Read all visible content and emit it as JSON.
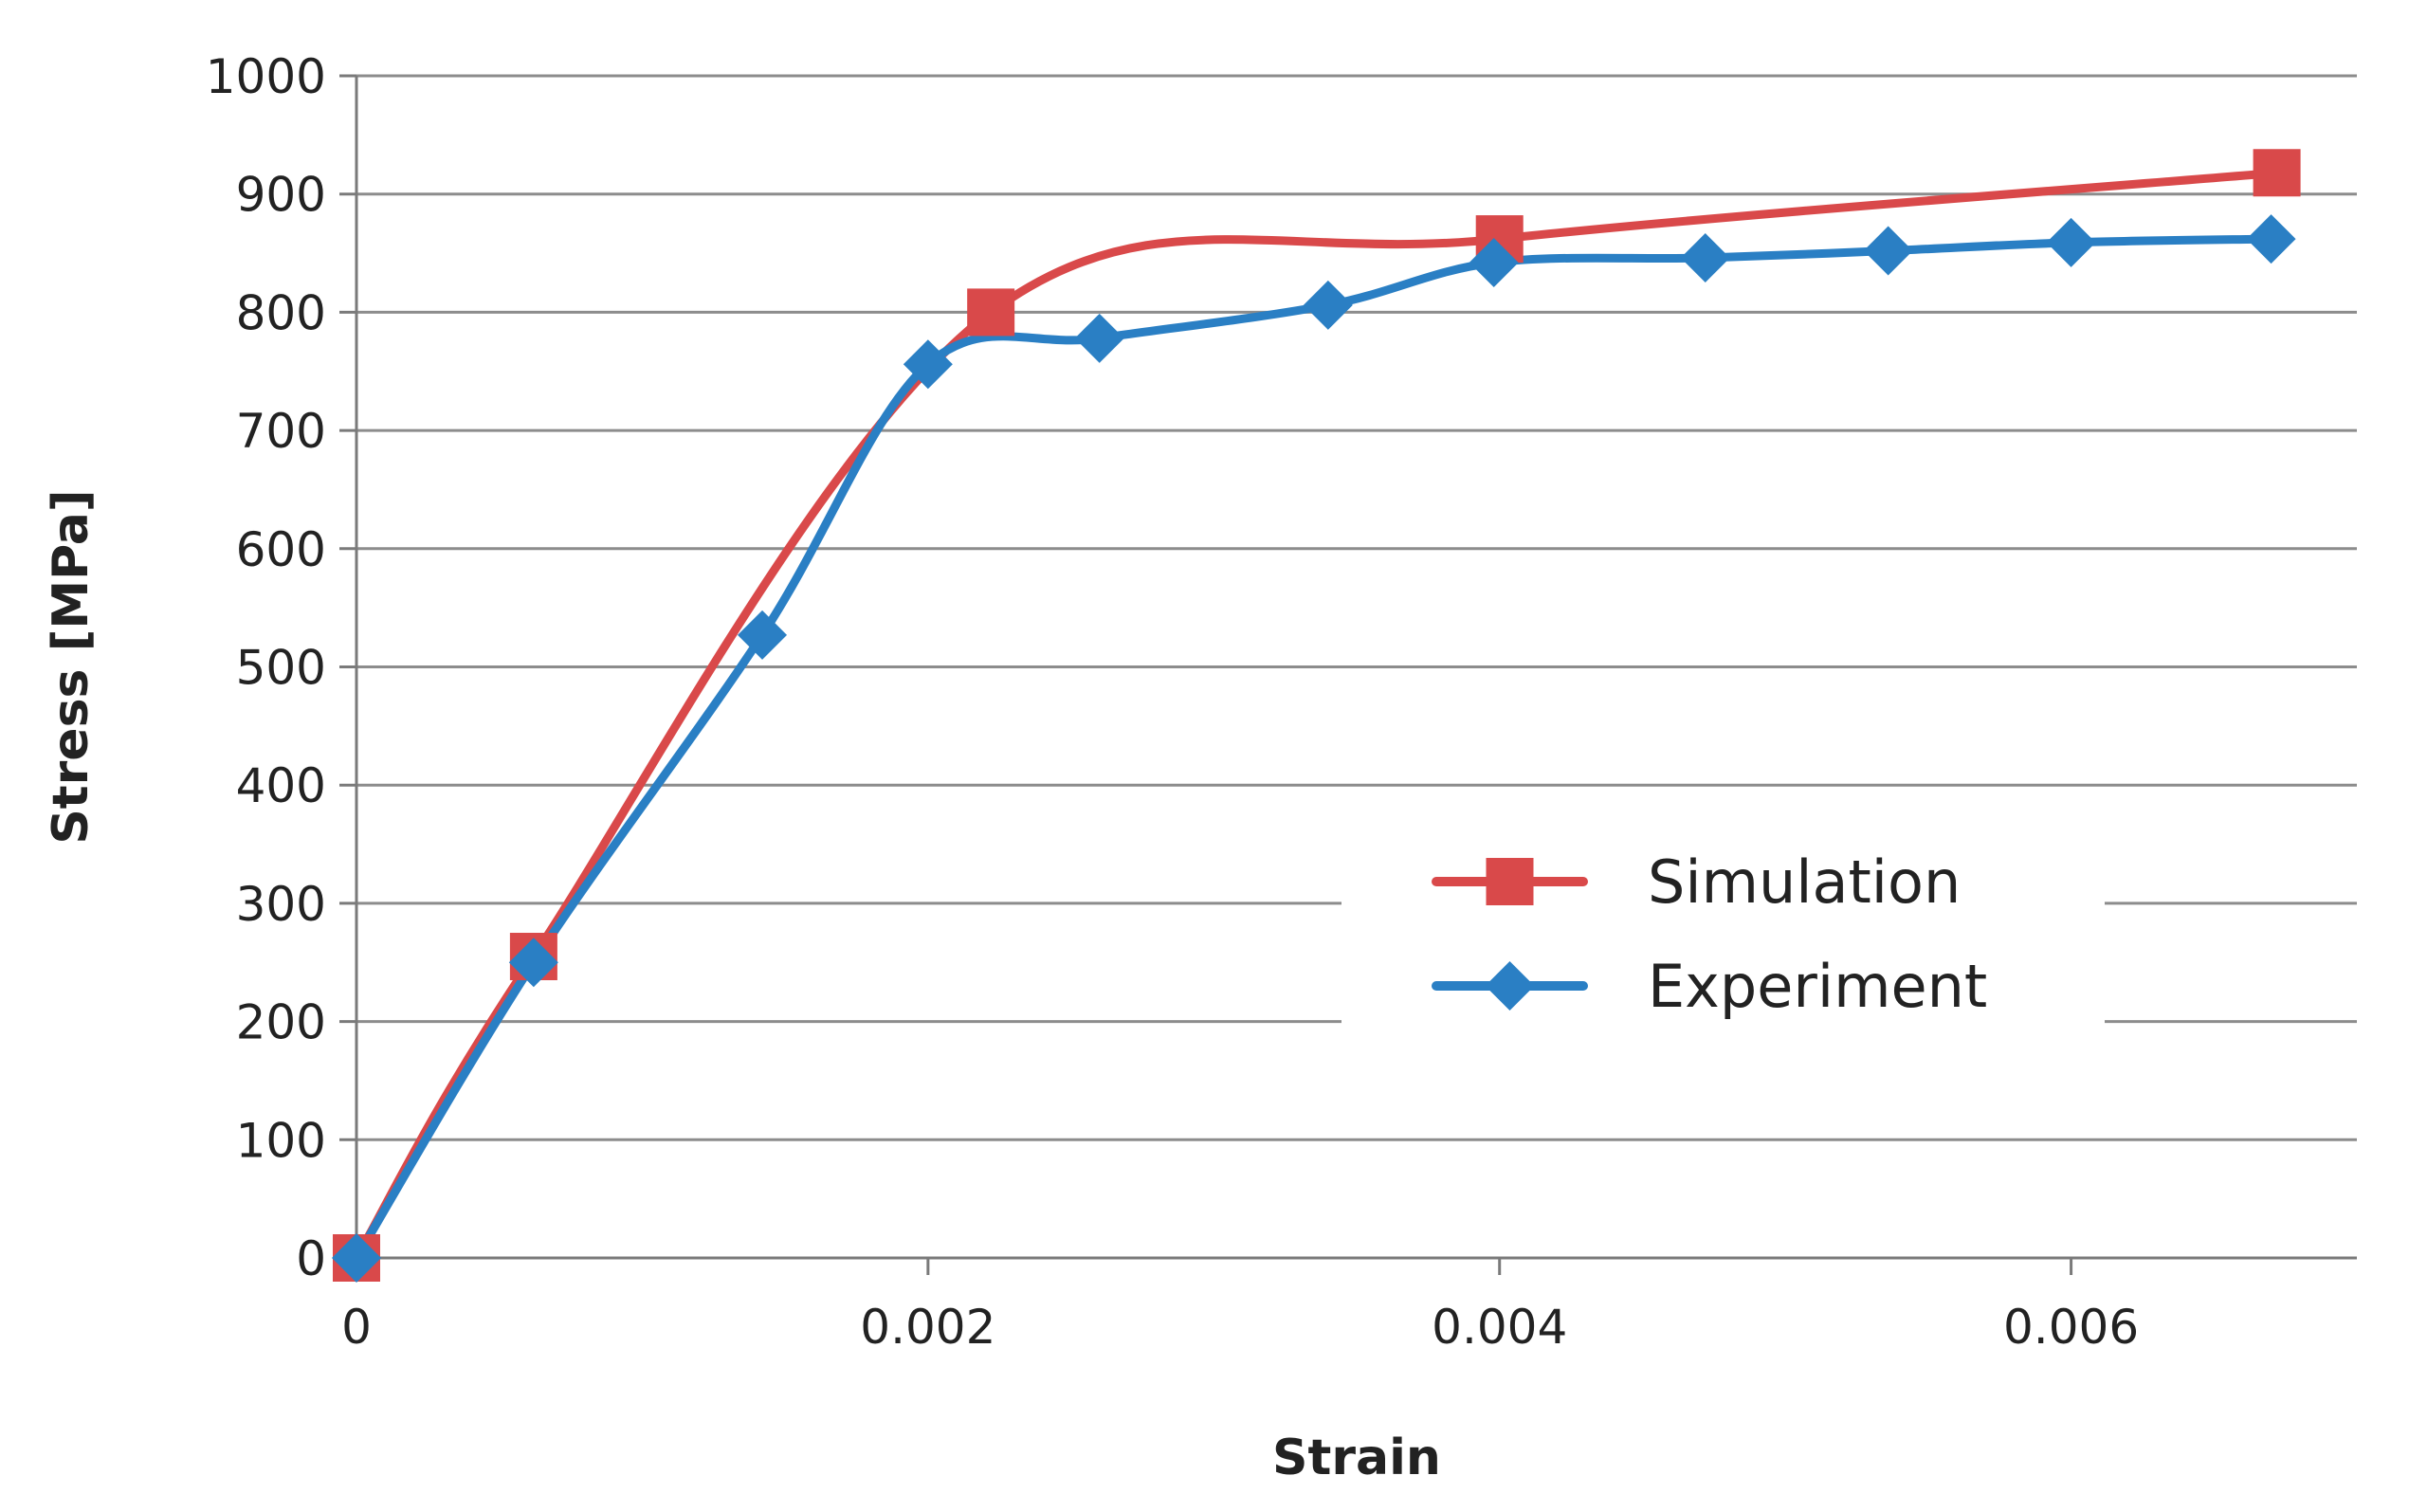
{
  "chart_data": {
    "type": "line",
    "title": "",
    "xlabel": "Strain",
    "ylabel": "Stress [MPa]",
    "xlim": [
      0,
      0.007
    ],
    "ylim": [
      0,
      1000
    ],
    "x_ticks": [
      0,
      0.002,
      0.004,
      0.006
    ],
    "x_tick_labels": [
      "0",
      "0.002",
      "0.004",
      "0.006"
    ],
    "y_ticks": [
      0,
      100,
      200,
      300,
      400,
      500,
      600,
      700,
      800,
      900,
      1000
    ],
    "y_tick_labels": [
      "0",
      "100",
      "200",
      "300",
      "400",
      "500",
      "600",
      "700",
      "800",
      "900",
      "1000"
    ],
    "grid": true,
    "legend_position": "center-right",
    "series": [
      {
        "name": "Simulation",
        "color": "#d9494a",
        "marker": "square",
        "x": [
          0,
          0.00062,
          0.00222,
          0.004,
          0.00672
        ],
        "y": [
          0,
          255,
          800,
          862,
          918
        ]
      },
      {
        "name": "Experiment",
        "color": "#2a7fc4",
        "marker": "diamond",
        "x": [
          0,
          0.00062,
          0.00142,
          0.002,
          0.0026,
          0.0034,
          0.00398,
          0.00472,
          0.00536,
          0.006,
          0.0067
        ],
        "y": [
          0,
          250,
          527,
          756,
          778,
          806,
          842,
          846,
          852,
          859,
          862
        ]
      }
    ]
  }
}
